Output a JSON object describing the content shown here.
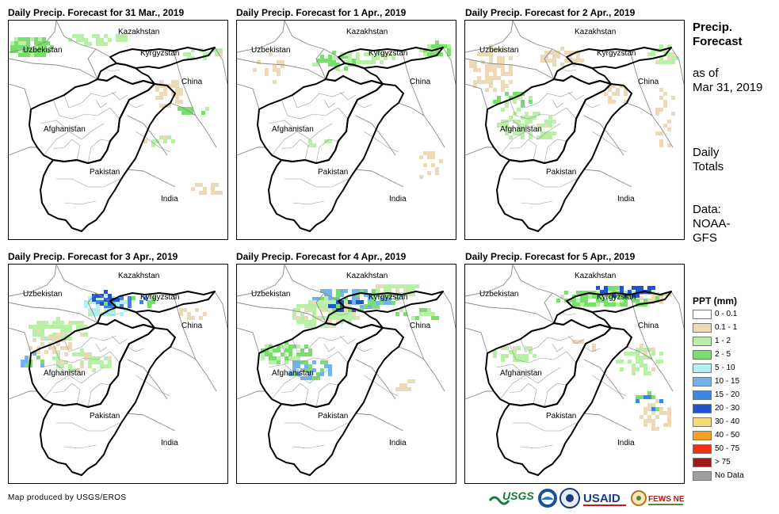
{
  "panels": [
    {
      "title": "Daily Precip. Forecast for 31 Mar., 2019"
    },
    {
      "title": "Daily Precip. Forecast for 1 Apr., 2019"
    },
    {
      "title": "Daily Precip. Forecast for 2 Apr., 2019"
    },
    {
      "title": "Daily Precip. Forecast for 3 Apr., 2019"
    },
    {
      "title": "Daily Precip. Forecast for 4 Apr., 2019"
    },
    {
      "title": "Daily Precip. Forecast for 5 Apr., 2019"
    }
  ],
  "map_labels": {
    "kazakhstan": "Kazakhstan",
    "uzbekistan": "Uzbekistan",
    "kyrgyzstan": "Kyrgyzstan",
    "china": "China",
    "afghanistan": "Afghanistan",
    "pakistan": "Pakistan",
    "india": "India"
  },
  "side_info": {
    "heading_line1": "Precip.",
    "heading_line2": "Forecast",
    "asof_line1": "as of",
    "asof_line2": "Mar 31, 2019",
    "daily_line1": "Daily",
    "daily_line2": "Totals",
    "data_line1": "Data:",
    "data_line2": "NOAA-",
    "data_line3": "GFS"
  },
  "legend": {
    "title": "PPT (mm)",
    "items": [
      {
        "label": "0 - 0.1",
        "color": "#ffffff"
      },
      {
        "label": "0.1 - 1",
        "color": "#ecd9b8"
      },
      {
        "label": "1 - 2",
        "color": "#b9f0a8"
      },
      {
        "label": "2 - 5",
        "color": "#78e06a"
      },
      {
        "label": "5 - 10",
        "color": "#b0f0f0"
      },
      {
        "label": "10 - 15",
        "color": "#72b2ee"
      },
      {
        "label": "15 - 20",
        "color": "#3b86e6"
      },
      {
        "label": "20 - 30",
        "color": "#1e56d0"
      },
      {
        "label": "30 - 40",
        "color": "#f5dc7a"
      },
      {
        "label": "40 - 50",
        "color": "#f5a020"
      },
      {
        "label": "50 - 75",
        "color": "#f03010"
      },
      {
        "label": "> 75",
        "color": "#a01818"
      },
      {
        "label": "No Data",
        "color": "#a0a0a0"
      }
    ]
  },
  "credit": "Map produced by USGS/EROS",
  "logos": {
    "usgs": "USGS",
    "usaid": "USAID",
    "fews": "FEWS NET"
  }
}
